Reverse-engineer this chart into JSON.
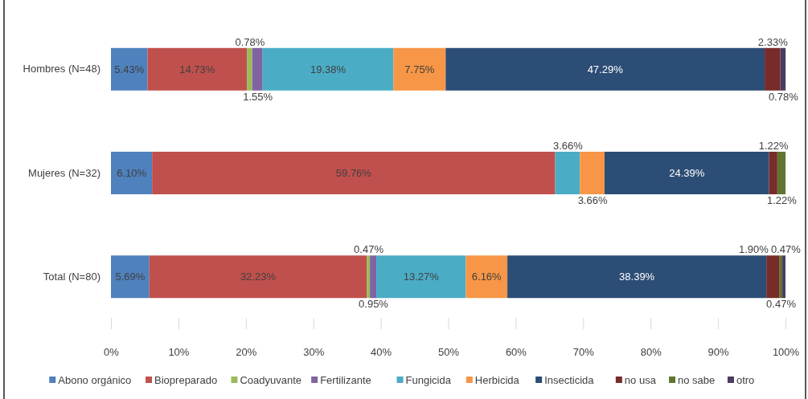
{
  "chart_data": {
    "type": "bar",
    "orientation": "horizontal",
    "stacked": true,
    "legend": "bottom",
    "grid": false,
    "categories": [
      "Hombres (N=48)",
      "Mujeres (N=32)",
      "Total (N=80)"
    ],
    "xlim": [
      0,
      100
    ],
    "xticks": [
      {
        "value": 0,
        "label": "0%"
      },
      {
        "value": 10,
        "label": "10%"
      },
      {
        "value": 20,
        "label": "20%"
      },
      {
        "value": 30,
        "label": "30%"
      },
      {
        "value": 40,
        "label": "40%"
      },
      {
        "value": 50,
        "label": "50%"
      },
      {
        "value": 60,
        "label": "60%"
      },
      {
        "value": 70,
        "label": "70%"
      },
      {
        "value": 80,
        "label": "80%"
      },
      {
        "value": 90,
        "label": "90%"
      },
      {
        "value": 100,
        "label": "100%"
      }
    ],
    "series": [
      {
        "name": "Abono orgánico",
        "color": "#4f81bd",
        "values": [
          5.43,
          6.1,
          5.69
        ],
        "value_labels": [
          "5.43%",
          "6.10%",
          "5.69%"
        ]
      },
      {
        "name": "Biopreparado",
        "color": "#c0504d",
        "values": [
          14.73,
          59.76,
          32.23
        ],
        "value_labels": [
          "14.73%",
          "59.76%",
          "32.23%"
        ]
      },
      {
        "name": "Coadyuvante",
        "color": "#9bbb59",
        "values": [
          0.78,
          null,
          0.47
        ],
        "value_labels": [
          "0.78%",
          null,
          "0.47%"
        ]
      },
      {
        "name": "Fertilizante",
        "color": "#8064a2",
        "values": [
          1.55,
          null,
          0.95
        ],
        "value_labels": [
          "1.55%",
          null,
          "0.95%"
        ]
      },
      {
        "name": "Fungicida",
        "color": "#4bacc6",
        "values": [
          19.38,
          3.66,
          13.27
        ],
        "value_labels": [
          "19.38%",
          "3.66%",
          "13.27%"
        ]
      },
      {
        "name": "Herbicida",
        "color": "#f79646",
        "values": [
          7.75,
          3.66,
          6.16
        ],
        "value_labels": [
          "7.75%",
          "3.66%",
          "6.16%"
        ]
      },
      {
        "name": "Insecticida",
        "color": "#2c4d75",
        "values": [
          47.29,
          24.39,
          38.39
        ],
        "value_labels": [
          "47.29%",
          "24.39%",
          "38.39%"
        ]
      },
      {
        "name": "no usa",
        "color": "#772c2a",
        "values": [
          2.33,
          1.22,
          1.9
        ],
        "value_labels": [
          "2.33%",
          "1.22%",
          "1.90%"
        ]
      },
      {
        "name": "no sabe",
        "color": "#5f7530",
        "values": [
          null,
          1.22,
          0.47
        ],
        "value_labels": [
          null,
          "1.22%",
          "0.47%"
        ]
      },
      {
        "name": "otro",
        "color": "#4d3b62",
        "values": [
          0.78,
          null,
          0.47
        ],
        "value_labels": [
          "0.78%",
          null,
          "0.47%"
        ]
      }
    ]
  }
}
